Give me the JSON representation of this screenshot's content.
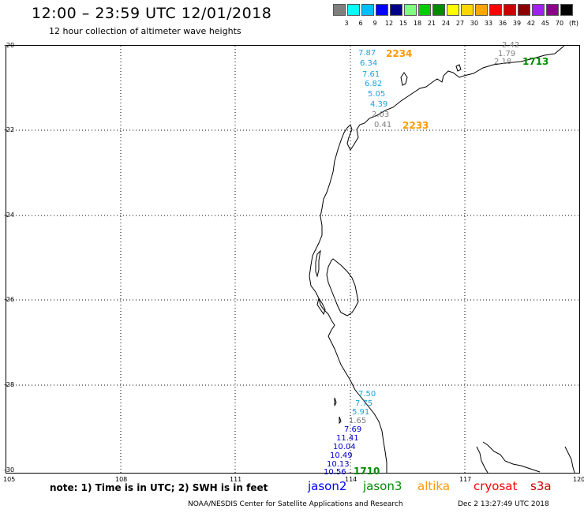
{
  "header": {
    "title": "12:00 – 23:59 UTC 12/01/2018",
    "subtitle": "12 hour collection of altimeter wave heights"
  },
  "legend": {
    "items": [
      {
        "label": "",
        "color": "#7f7f7f"
      },
      {
        "label": "3",
        "color": "#00ffff"
      },
      {
        "label": "6",
        "color": "#00bfff"
      },
      {
        "label": "9",
        "color": "#0000ff"
      },
      {
        "label": "12",
        "color": "#00008b"
      },
      {
        "label": "15",
        "color": "#7fff7f"
      },
      {
        "label": "18",
        "color": "#00cc00"
      },
      {
        "label": "21",
        "color": "#008b00"
      },
      {
        "label": "24",
        "color": "#ffff00"
      },
      {
        "label": "27",
        "color": "#ffd700"
      },
      {
        "label": "30",
        "color": "#ffa500"
      },
      {
        "label": "33",
        "color": "#ff0000"
      },
      {
        "label": "36",
        "color": "#cd0000"
      },
      {
        "label": "39",
        "color": "#8b0000"
      },
      {
        "label": "42",
        "color": "#a020f0"
      },
      {
        "label": "45",
        "color": "#8b008b"
      },
      {
        "label": "70",
        "color": "#000000"
      }
    ],
    "unit": "(ft)"
  },
  "map": {
    "lat_ticks": [
      "-20",
      "-22",
      "-24",
      "-26",
      "-28",
      "-30"
    ],
    "lon_ticks": [
      "105",
      "108",
      "111",
      "114",
      "117",
      "120"
    ],
    "wave_heights_ft": [
      {
        "text": "7.87",
        "color": "#1aa3d8"
      },
      {
        "text": "6.34",
        "color": "#1aa3d8"
      },
      {
        "text": "7.61",
        "color": "#1aa3d8"
      },
      {
        "text": "6.82",
        "color": "#1aa3d8"
      },
      {
        "text": "5.05",
        "color": "#1aa3d8"
      },
      {
        "text": "4.39",
        "color": "#1aa3d8"
      },
      {
        "text": "2.03",
        "color": "#7f7f7f"
      },
      {
        "text": "0.41",
        "color": "#7f7f7f"
      },
      {
        "text": "2.42",
        "color": "#7f7f7f"
      },
      {
        "text": "1.79",
        "color": "#7f7f7f"
      },
      {
        "text": "2.18",
        "color": "#7f7f7f"
      },
      {
        "text": "7.50",
        "color": "#1aa3d8"
      },
      {
        "text": "7.75",
        "color": "#1aa3d8"
      },
      {
        "text": "5.91",
        "color": "#1aa3d8"
      },
      {
        "text": "1.65",
        "color": "#7f7f7f"
      },
      {
        "text": "7.69",
        "color": "#0000cd"
      },
      {
        "text": "11.41",
        "color": "#0000cd"
      },
      {
        "text": "10.04",
        "color": "#0000cd"
      },
      {
        "text": "10.49",
        "color": "#0000cd"
      },
      {
        "text": "10.13",
        "color": "#0000cd"
      },
      {
        "text": "10.56",
        "color": "#0000cd"
      }
    ],
    "pass_times": [
      {
        "text": "2234",
        "color": "#ff9900"
      },
      {
        "text": "2233",
        "color": "#ff9900"
      },
      {
        "text": "1713",
        "color": "#008b00"
      },
      {
        "text": "1710",
        "color": "#008b00"
      }
    ]
  },
  "footer": {
    "note": "note: 1) Time is in UTC; 2) SWH is in feet",
    "satellites": [
      {
        "name": "jason2",
        "color": "#0000ff"
      },
      {
        "name": "jason3",
        "color": "#008b00"
      },
      {
        "name": "altika",
        "color": "#ff9900"
      },
      {
        "name": "cryosat",
        "color": "#ff0000"
      },
      {
        "name": "s3a",
        "color": "#cc0000"
      }
    ],
    "credit": "NOAA/NESDIS Center for Satellite Applications and Research",
    "timestamp": "Dec  2 13:27:49 UTC 2018"
  }
}
